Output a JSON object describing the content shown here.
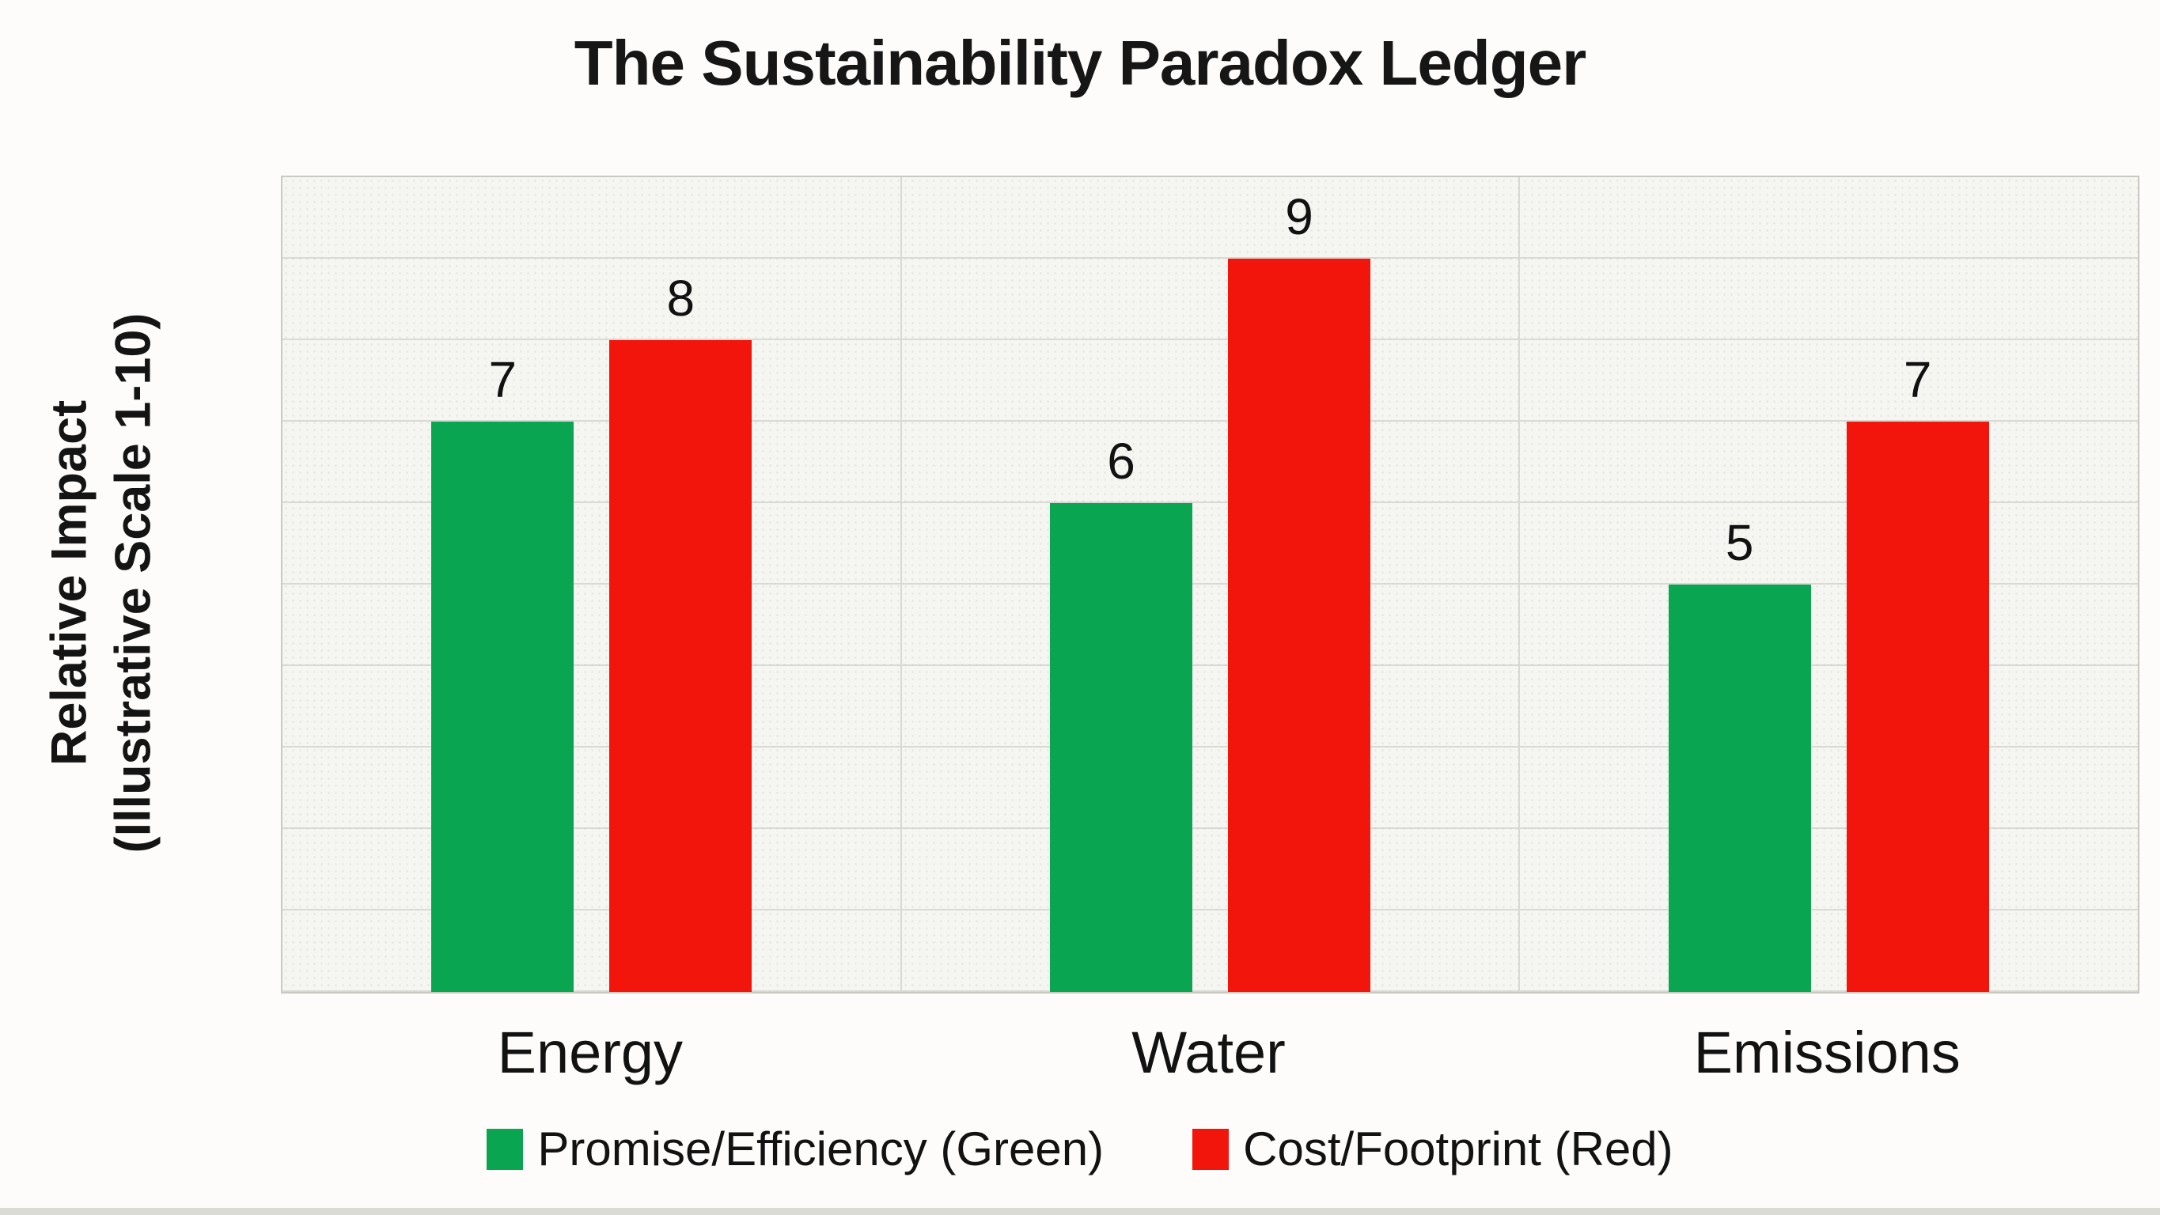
{
  "title": "The Sustainability Paradox Ledger",
  "y_axis": {
    "label_line1": "Relative Impact",
    "label_line2": "(Illustrative Scale 1-10)"
  },
  "chart_data": {
    "type": "bar",
    "title": "The Sustainability Paradox Ledger",
    "categories": [
      "Energy",
      "Water",
      "Emissions"
    ],
    "series": [
      {
        "name": "Promise/Efficiency (Green)",
        "color": "#0aa550",
        "values": [
          7,
          6,
          5
        ]
      },
      {
        "name": "Cost/Footprint (Red)",
        "color": "#f2150c",
        "values": [
          8,
          9,
          7
        ]
      }
    ],
    "xlabel": "",
    "ylabel": "Relative Impact (Illustrative Scale 1-10)",
    "ylim": [
      0,
      10
    ],
    "grid": "horizontal gridlines every 1 unit; vertical separators between categories",
    "y_tick_labels_visible": false,
    "data_labels": true,
    "legend_position": "bottom"
  },
  "legend": {
    "items": [
      {
        "label": "Promise/Efficiency (Green)",
        "color": "#0aa550"
      },
      {
        "label": "Cost/Footprint (Red)",
        "color": "#f2150c"
      }
    ]
  },
  "colors": {
    "page_background": "#fdfcfa",
    "plot_background": "#f5f5f1",
    "gridline": "#d9d9d4",
    "plot_border": "#c9c9c4",
    "text": "#141414",
    "bottom_strip": "#dbdbd6"
  }
}
